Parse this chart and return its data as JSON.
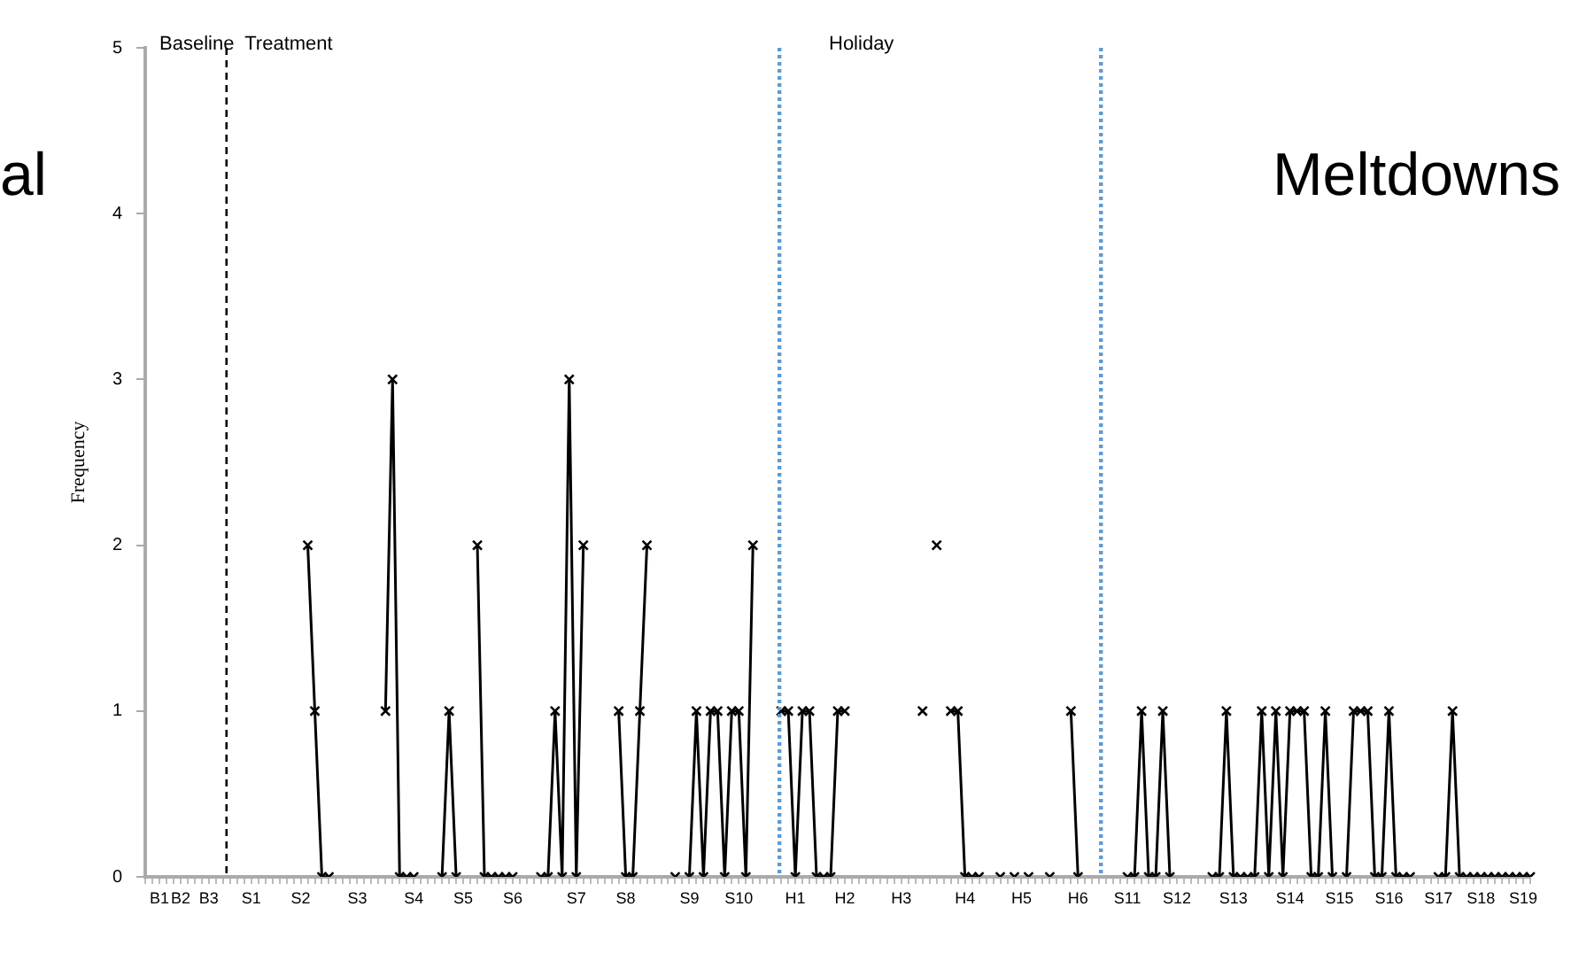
{
  "chart_data": {
    "type": "line",
    "ylabel": "Frequency",
    "marker": "cross",
    "grid": false,
    "legend": false,
    "ylim": [
      0,
      5
    ],
    "yticks": [
      0,
      1,
      2,
      3,
      4,
      5
    ],
    "categories": [
      null,
      null,
      "B1",
      null,
      null,
      "B2",
      null,
      null,
      null,
      "B3",
      null,
      null,
      null,
      null,
      null,
      "S1",
      null,
      null,
      null,
      null,
      null,
      null,
      "S2",
      null,
      null,
      null,
      null,
      null,
      null,
      null,
      "S3",
      null,
      null,
      null,
      null,
      null,
      null,
      null,
      "S4",
      null,
      null,
      null,
      null,
      null,
      null,
      "S5",
      null,
      null,
      null,
      null,
      null,
      null,
      "S6",
      null,
      null,
      null,
      null,
      null,
      null,
      null,
      null,
      "S7",
      null,
      null,
      null,
      null,
      null,
      null,
      "S8",
      null,
      null,
      null,
      null,
      null,
      null,
      null,
      null,
      "S9",
      null,
      null,
      null,
      null,
      null,
      null,
      "S10",
      null,
      null,
      null,
      null,
      null,
      null,
      null,
      "H1",
      null,
      null,
      null,
      null,
      null,
      null,
      "H2",
      null,
      null,
      null,
      null,
      null,
      null,
      null,
      "H3",
      null,
      null,
      null,
      null,
      null,
      null,
      null,
      null,
      "H4",
      null,
      null,
      null,
      null,
      null,
      null,
      null,
      "H5",
      null,
      null,
      null,
      null,
      null,
      null,
      null,
      "H6",
      null,
      null,
      null,
      null,
      null,
      null,
      "S11",
      null,
      null,
      null,
      null,
      null,
      null,
      "S12",
      null,
      null,
      null,
      null,
      null,
      null,
      null,
      "S13",
      null,
      null,
      null,
      null,
      null,
      null,
      null,
      "S14",
      null,
      null,
      null,
      null,
      null,
      null,
      "S15",
      null,
      null,
      null,
      null,
      null,
      null,
      "S16",
      null,
      null,
      null,
      null,
      null,
      null,
      "S17",
      null,
      null,
      null,
      null,
      null,
      "S18",
      null,
      null,
      null,
      null,
      null,
      "S19",
      null
    ],
    "series": [
      {
        "color": "#000000",
        "values": [
          null,
          null,
          null,
          null,
          null,
          null,
          null,
          null,
          null,
          null,
          null,
          null,
          null,
          null,
          null,
          null,
          null,
          null,
          null,
          null,
          null,
          null,
          null,
          2,
          1,
          0,
          0,
          null,
          null,
          null,
          null,
          null,
          null,
          null,
          1,
          3,
          0,
          0,
          0,
          null,
          null,
          null,
          0,
          1,
          0,
          null,
          null,
          2,
          0,
          0,
          0,
          0,
          0,
          null,
          null,
          null,
          0,
          0,
          1,
          0,
          3,
          0,
          2,
          null,
          null,
          null,
          null,
          1,
          0,
          0,
          1,
          2,
          null,
          null,
          null,
          0,
          null,
          0,
          1,
          0,
          1,
          1,
          0,
          1,
          1,
          0,
          2,
          null,
          null,
          null,
          1,
          1,
          0,
          1,
          1,
          0,
          0,
          0,
          1,
          1,
          null,
          null,
          null,
          null,
          null,
          null,
          null,
          null,
          null,
          null,
          1,
          null,
          2,
          null,
          1,
          1,
          0,
          0,
          0,
          null,
          null,
          0,
          null,
          0,
          null,
          0,
          null,
          null,
          0,
          null,
          null,
          1,
          0,
          null,
          null,
          null,
          null,
          null,
          null,
          0,
          0,
          1,
          0,
          0,
          1,
          0,
          null,
          null,
          null,
          null,
          null,
          0,
          0,
          1,
          0,
          0,
          0,
          0,
          1,
          0,
          1,
          0,
          1,
          1,
          1,
          0,
          0,
          1,
          0,
          null,
          0,
          1,
          1,
          1,
          0,
          0,
          1,
          0,
          0,
          0,
          null,
          null,
          null,
          0,
          0,
          1,
          0,
          0,
          0,
          0,
          0,
          0,
          0,
          0,
          0,
          0,
          0
        ]
      }
    ],
    "annotations": [
      "Baseline  Treatment",
      "Holiday",
      "al",
      "Meltdowns"
    ]
  }
}
